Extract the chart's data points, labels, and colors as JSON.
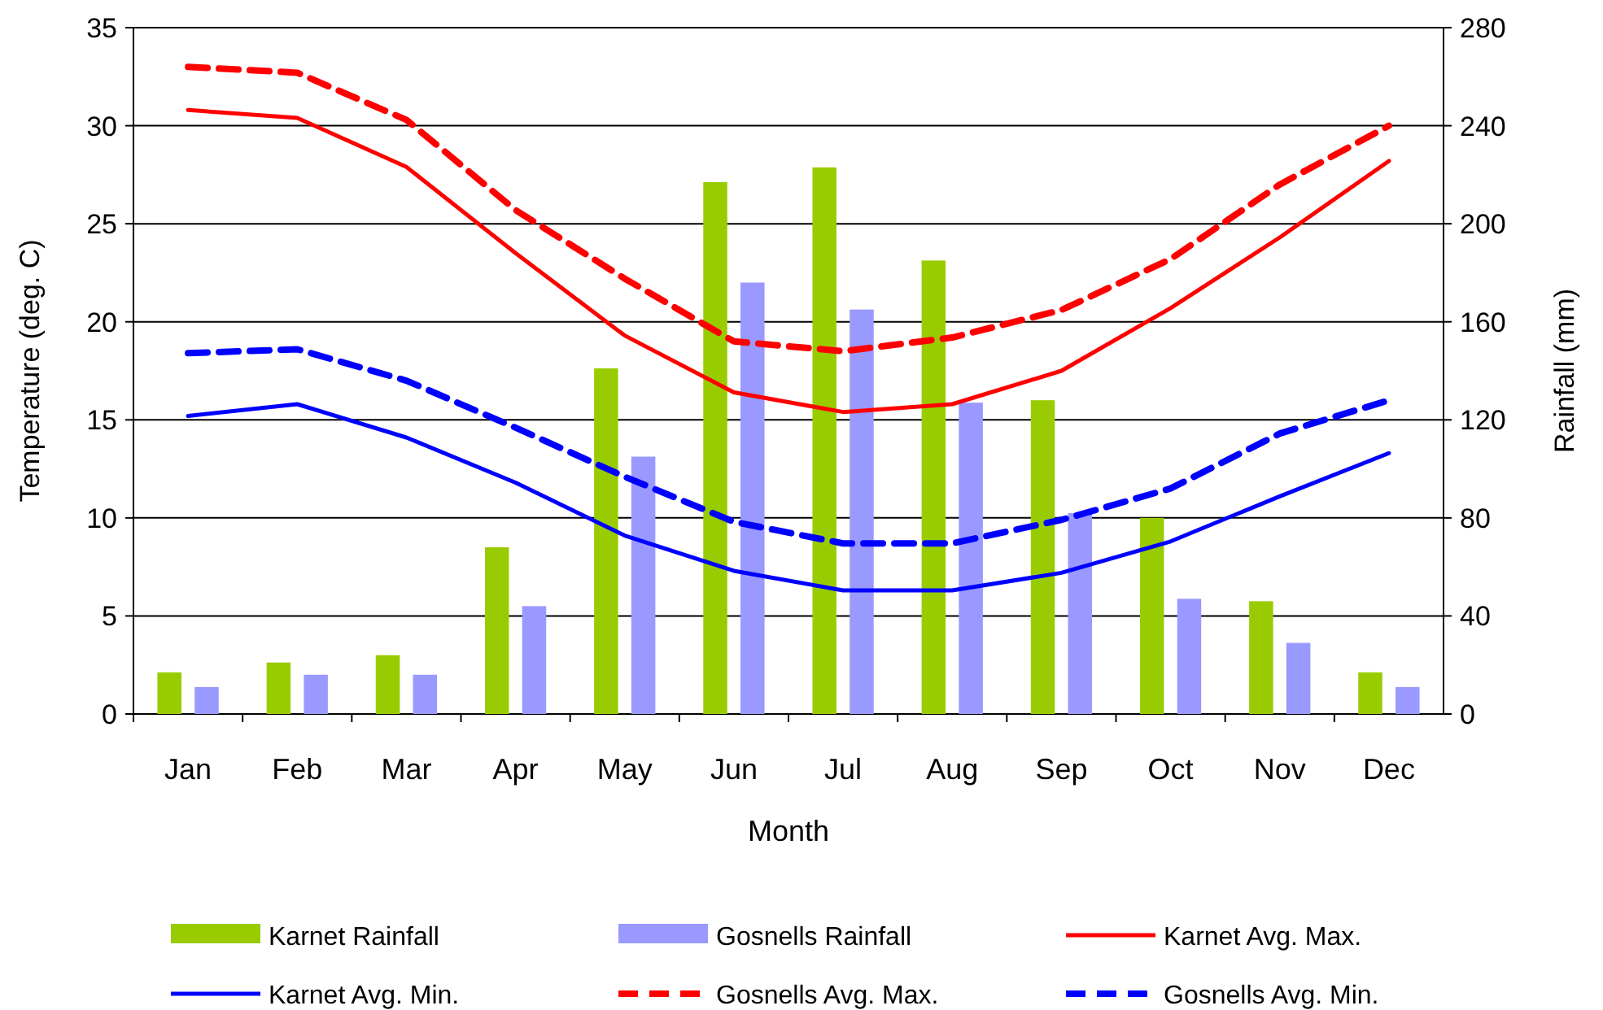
{
  "chart_data": {
    "type": "bar",
    "xlabel": "Month",
    "ylabel": "Temperature (deg. C)",
    "y2label": "Rainfall (mm)",
    "categories": [
      "Jan",
      "Feb",
      "Mar",
      "Apr",
      "May",
      "Jun",
      "Jul",
      "Aug",
      "Sep",
      "Oct",
      "Nov",
      "Dec"
    ],
    "ylim": [
      0,
      35
    ],
    "yticks": [
      0,
      5,
      10,
      15,
      20,
      25,
      30,
      35
    ],
    "y2lim": [
      0,
      280
    ],
    "y2ticks": [
      0,
      40,
      80,
      120,
      160,
      200,
      240,
      280
    ],
    "grid": "y",
    "legend": "bottom",
    "series": [
      {
        "name": "Karnet Rainfall",
        "axis": "y2",
        "color": "#99cc00",
        "values": [
          17,
          21,
          24,
          68,
          141,
          217,
          223,
          185,
          128,
          80,
          46,
          17
        ]
      },
      {
        "name": "Gosnells Rainfall",
        "axis": "y2",
        "color": "#9999ff",
        "values": [
          11,
          16,
          16,
          44,
          105,
          176,
          165,
          127,
          82,
          47,
          29,
          11
        ]
      },
      {
        "name": "Karnet Avg. Max.",
        "type": "line",
        "color": "#ff0000",
        "line_style": "solid",
        "values": [
          30.8,
          30.4,
          27.9,
          23.5,
          19.3,
          16.4,
          15.4,
          15.8,
          17.5,
          20.7,
          24.3,
          28.2
        ]
      },
      {
        "name": "Karnet Avg. Min.",
        "type": "line",
        "color": "#0000ff",
        "line_style": "solid",
        "values": [
          15.2,
          15.8,
          14.1,
          11.8,
          9.1,
          7.3,
          6.3,
          6.3,
          7.2,
          8.8,
          11.1,
          13.3
        ]
      },
      {
        "name": "Gosnells Avg. Max.",
        "type": "line",
        "color": "#ff0000",
        "line_style": "dashed",
        "values": [
          33.0,
          32.7,
          30.3,
          25.7,
          22.2,
          19.0,
          18.5,
          19.2,
          20.6,
          23.2,
          27.0,
          30.0
        ]
      },
      {
        "name": "Gosnells Avg. Min.",
        "type": "line",
        "color": "#0000ff",
        "line_style": "dashed",
        "values": [
          18.4,
          18.6,
          17.0,
          14.6,
          12.1,
          9.8,
          8.7,
          8.7,
          9.9,
          11.5,
          14.3,
          16.0
        ]
      }
    ]
  }
}
